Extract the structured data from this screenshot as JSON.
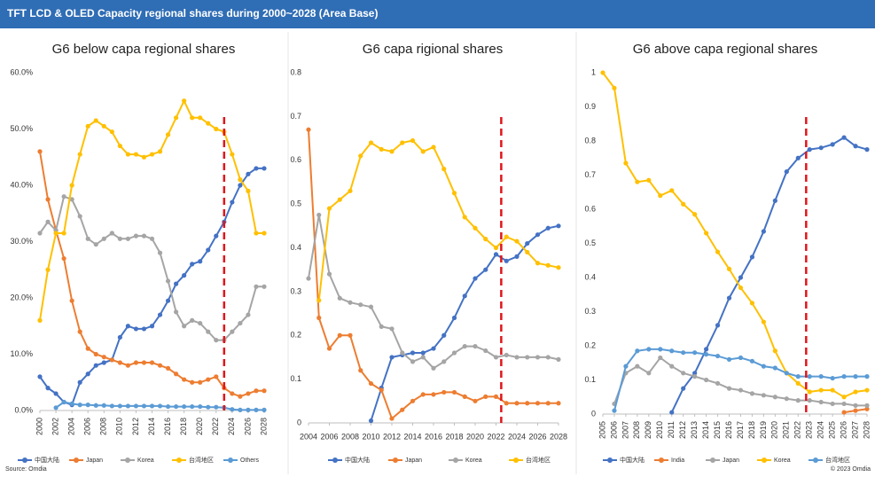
{
  "header": {
    "title": "TFT LCD & OLED Capacity regional shares during 2000~2028 (Area Base)"
  },
  "footer": {
    "source": "Source: Omdia",
    "copyright": "© 2023 Omdia"
  },
  "chart_data": [
    {
      "type": "line",
      "title": "G6 below capa regional shares",
      "x": [
        2000,
        2001,
        2002,
        2003,
        2004,
        2005,
        2006,
        2007,
        2008,
        2009,
        2010,
        2011,
        2012,
        2013,
        2014,
        2015,
        2016,
        2017,
        2018,
        2019,
        2020,
        2021,
        2022,
        2023,
        2024,
        2025,
        2026,
        2027,
        2028
      ],
      "xlim": [
        2000,
        2028
      ],
      "xticks": [
        2000,
        2002,
        2004,
        2006,
        2008,
        2010,
        2012,
        2014,
        2016,
        2018,
        2020,
        2022,
        2024,
        2026,
        2028
      ],
      "ylim": [
        0,
        60
      ],
      "yticks": [
        {
          "value": 0,
          "label": "0.0%"
        },
        {
          "value": 10,
          "label": "10.0%"
        },
        {
          "value": 20,
          "label": "20.0%"
        },
        {
          "value": 30,
          "label": "30.0%"
        },
        {
          "value": 40,
          "label": "40.0%"
        },
        {
          "value": 50,
          "label": "50.0%"
        },
        {
          "value": 60,
          "label": "60.0%"
        }
      ],
      "vline": 2023,
      "vline_color": "#e0161b",
      "series": [
        {
          "name": "中国大陆",
          "color": "#4472c4",
          "values": [
            6,
            4,
            3,
            1.5,
            1,
            5,
            6.5,
            8,
            8.5,
            9,
            13,
            15,
            14.5,
            14.5,
            15,
            17,
            19.5,
            22.5,
            24,
            26,
            26.5,
            28.5,
            31,
            33.5,
            37,
            40,
            42,
            43,
            43
          ]
        },
        {
          "name": "Japan",
          "color": "#ed7d31",
          "values": [
            46,
            37.5,
            32,
            27,
            19.5,
            14,
            11,
            10,
            9.5,
            9,
            8.5,
            8,
            8.5,
            8.5,
            8.5,
            8,
            7.5,
            6.5,
            5.5,
            5,
            5,
            5.5,
            6,
            4,
            3,
            2.5,
            3,
            3.5,
            3.5
          ]
        },
        {
          "name": "Korea",
          "color": "#a5a5a5",
          "values": [
            31.5,
            33.5,
            32,
            38,
            37.5,
            34.5,
            30.5,
            29.5,
            30.5,
            31.5,
            30.5,
            30.5,
            31,
            31,
            30.5,
            28,
            23,
            17.5,
            15,
            16,
            15.5,
            14,
            12.5,
            12.5,
            14,
            15.5,
            17,
            22,
            22
          ]
        },
        {
          "name": "台湾地区",
          "color": "#ffc000",
          "values": [
            16,
            25,
            31.5,
            31.5,
            40,
            45.5,
            50.5,
            51.5,
            50.5,
            49.5,
            47,
            45.5,
            45.5,
            45,
            45.5,
            46,
            49,
            52,
            55,
            52,
            52,
            51,
            50,
            49.5,
            45.5,
            41,
            39,
            31.5,
            31.5
          ]
        },
        {
          "name": "Others",
          "color": "#5b9bd5",
          "values": [
            null,
            null,
            0.5,
            1.5,
            1.2,
            1,
            1,
            0.9,
            0.9,
            0.8,
            0.8,
            0.8,
            0.8,
            0.8,
            0.8,
            0.8,
            0.7,
            0.7,
            0.7,
            0.7,
            0.7,
            0.6,
            0.6,
            0.5,
            0.2,
            0.1,
            0.1,
            0.1,
            0.1
          ]
        }
      ]
    },
    {
      "type": "line",
      "title": "G6 capa rigional shares",
      "x": [
        2004,
        2005,
        2006,
        2007,
        2008,
        2009,
        2010,
        2011,
        2012,
        2013,
        2014,
        2015,
        2016,
        2017,
        2018,
        2019,
        2020,
        2021,
        2022,
        2023,
        2024,
        2025,
        2026,
        2027,
        2028
      ],
      "xlim": [
        2004,
        2028
      ],
      "xticks": [
        2004,
        2006,
        2008,
        2010,
        2012,
        2014,
        2016,
        2018,
        2020,
        2022,
        2024,
        2026,
        2028
      ],
      "ylim": [
        0,
        0.8
      ],
      "yticks": [
        0,
        0.1,
        0.2,
        0.3,
        0.4,
        0.5,
        0.6,
        0.7,
        0.8
      ],
      "vline": 2022.5,
      "vline_color": "#e0161b",
      "series": [
        {
          "name": "中国大陆",
          "color": "#4472c4",
          "values": [
            null,
            null,
            null,
            null,
            null,
            null,
            0.005,
            0.08,
            0.15,
            0.155,
            0.16,
            0.16,
            0.17,
            0.2,
            0.24,
            0.29,
            0.33,
            0.35,
            0.385,
            0.37,
            0.38,
            0.41,
            0.43,
            0.445,
            0.45
          ]
        },
        {
          "name": "Japan",
          "color": "#ed7d31",
          "values": [
            0.67,
            0.24,
            0.17,
            0.2,
            0.2,
            0.12,
            0.09,
            0.075,
            0.01,
            0.03,
            0.05,
            0.065,
            0.065,
            0.07,
            0.07,
            0.06,
            0.05,
            0.06,
            0.06,
            0.045,
            0.045,
            0.045,
            0.045,
            0.045,
            0.045
          ]
        },
        {
          "name": "Korea",
          "color": "#a5a5a5",
          "values": [
            0.33,
            0.475,
            0.34,
            0.285,
            0.275,
            0.27,
            0.265,
            0.22,
            0.215,
            0.16,
            0.14,
            0.15,
            0.125,
            0.14,
            0.16,
            0.175,
            0.175,
            0.165,
            0.15,
            0.155,
            0.15,
            0.15,
            0.15,
            0.15,
            0.145
          ]
        },
        {
          "name": "台湾地区",
          "color": "#ffc000",
          "values": [
            null,
            0.28,
            0.49,
            0.51,
            0.53,
            0.61,
            0.64,
            0.625,
            0.62,
            0.64,
            0.645,
            0.62,
            0.63,
            0.58,
            0.525,
            0.47,
            0.445,
            0.42,
            0.4,
            0.425,
            0.415,
            0.39,
            0.365,
            0.36,
            0.355
          ]
        }
      ]
    },
    {
      "type": "line",
      "title": "G6 above capa regional shares",
      "x": [
        2005,
        2006,
        2007,
        2008,
        2009,
        2010,
        2011,
        2012,
        2013,
        2014,
        2015,
        2016,
        2017,
        2018,
        2019,
        2020,
        2021,
        2022,
        2023,
        2024,
        2025,
        2026,
        2027,
        2028
      ],
      "xlim": [
        2005,
        2028
      ],
      "xticks": [
        2005,
        2006,
        2007,
        2008,
        2009,
        2010,
        2011,
        2012,
        2013,
        2014,
        2015,
        2016,
        2017,
        2018,
        2019,
        2020,
        2021,
        2022,
        2023,
        2024,
        2025,
        2026,
        2027,
        2028
      ],
      "ylim": [
        0,
        1
      ],
      "yticks": [
        0,
        0.1,
        0.2,
        0.3,
        0.4,
        0.5,
        0.6,
        0.7,
        0.8,
        0.9,
        1
      ],
      "vline": 2022.7,
      "vline_color": "#e0161b",
      "series": [
        {
          "name": "中国大陆",
          "color": "#4472c4",
          "values": [
            null,
            null,
            null,
            null,
            null,
            null,
            0.005,
            0.075,
            0.12,
            0.19,
            0.26,
            0.34,
            0.4,
            0.46,
            0.535,
            0.625,
            0.71,
            0.75,
            0.775,
            0.78,
            0.79,
            0.81,
            0.785,
            0.775
          ]
        },
        {
          "name": "India",
          "color": "#ed7d31",
          "values": [
            null,
            null,
            null,
            null,
            null,
            null,
            null,
            null,
            null,
            null,
            null,
            null,
            null,
            null,
            null,
            null,
            null,
            null,
            null,
            null,
            null,
            0.005,
            0.01,
            0.015
          ]
        },
        {
          "name": "Japan",
          "color": "#a5a5a5",
          "values": [
            null,
            0.03,
            0.12,
            0.14,
            0.12,
            0.165,
            0.14,
            0.12,
            0.11,
            0.1,
            0.09,
            0.075,
            0.07,
            0.06,
            0.055,
            0.05,
            0.045,
            0.04,
            0.04,
            0.035,
            0.03,
            0.03,
            0.025,
            0.025
          ]
        },
        {
          "name": "Korea",
          "color": "#ffc000",
          "values": [
            1,
            0.955,
            0.735,
            0.68,
            0.685,
            0.64,
            0.655,
            0.615,
            0.585,
            0.53,
            0.475,
            0.425,
            0.37,
            0.325,
            0.27,
            0.185,
            0.12,
            0.09,
            0.065,
            0.07,
            0.07,
            0.05,
            0.065,
            0.07
          ]
        },
        {
          "name": "台湾地区",
          "color": "#5b9bd5",
          "values": [
            null,
            0.01,
            0.14,
            0.185,
            0.19,
            0.19,
            0.185,
            0.18,
            0.18,
            0.175,
            0.17,
            0.16,
            0.165,
            0.155,
            0.14,
            0.135,
            0.12,
            0.11,
            0.11,
            0.11,
            0.105,
            0.11,
            0.11,
            0.11
          ]
        }
      ]
    }
  ]
}
